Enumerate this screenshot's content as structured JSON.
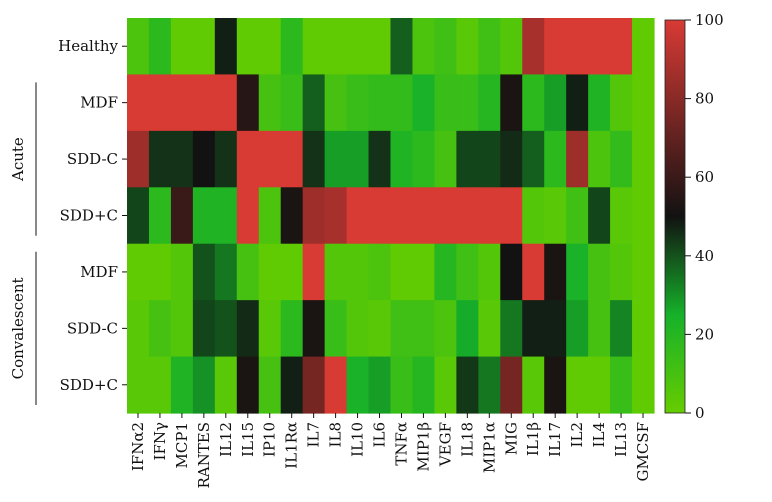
{
  "chart_data": {
    "type": "heatmap",
    "row_groups": [
      {
        "label": "",
        "rows": [
          "Healthy"
        ]
      },
      {
        "label": "Acute",
        "rows": [
          "MDF",
          "SDD-C",
          "SDD+C"
        ]
      },
      {
        "label": "Convalescent",
        "rows": [
          "MDF",
          "SDD-C",
          "SDD+C"
        ]
      }
    ],
    "rows": [
      "Healthy",
      "MDF",
      "SDD-C",
      "SDD+C",
      "MDF",
      "SDD-C",
      "SDD+C"
    ],
    "columns": [
      "IFNα2",
      "IFNγ",
      "MCP1",
      "RANTES",
      "IL12",
      "IL15",
      "IP10",
      "IL1Rα",
      "IL7",
      "IL8",
      "IL10",
      "IL6",
      "TNFα",
      "MIP1β",
      "VEGF",
      "IL18",
      "MIP1α",
      "MIG",
      "IL1β",
      "IL17",
      "IL2",
      "IL4",
      "IL13",
      "GMCSF"
    ],
    "values": [
      [
        8,
        18,
        2,
        2,
        48,
        2,
        2,
        18,
        2,
        2,
        2,
        2,
        38,
        8,
        12,
        4,
        12,
        6,
        88,
        100,
        100,
        100,
        100,
        2
      ],
      [
        100,
        100,
        100,
        100,
        100,
        55,
        10,
        14,
        38,
        10,
        14,
        16,
        16,
        24,
        14,
        14,
        20,
        52,
        18,
        28,
        48,
        22,
        6,
        2
      ],
      [
        85,
        45,
        45,
        50,
        45,
        100,
        100,
        100,
        45,
        28,
        28,
        45,
        22,
        18,
        10,
        42,
        42,
        46,
        38,
        18,
        85,
        8,
        16,
        2
      ],
      [
        42,
        18,
        60,
        22,
        22,
        100,
        8,
        52,
        85,
        88,
        100,
        100,
        100,
        100,
        100,
        100,
        100,
        100,
        6,
        4,
        12,
        42,
        4,
        2
      ],
      [
        2,
        2,
        6,
        40,
        34,
        10,
        2,
        2,
        100,
        6,
        6,
        8,
        2,
        2,
        20,
        12,
        6,
        50,
        100,
        52,
        24,
        10,
        6,
        2
      ],
      [
        4,
        10,
        6,
        42,
        40,
        46,
        4,
        18,
        52,
        14,
        6,
        4,
        12,
        12,
        8,
        26,
        4,
        34,
        48,
        48,
        28,
        10,
        32,
        2
      ],
      [
        4,
        4,
        22,
        30,
        4,
        52,
        10,
        48,
        75,
        100,
        24,
        28,
        14,
        20,
        4,
        44,
        34,
        75,
        4,
        52,
        2,
        2,
        14,
        2
      ]
    ],
    "colorbar": {
      "min": 0,
      "max": 100,
      "ticks": [
        0,
        20,
        40,
        60,
        80,
        100
      ]
    },
    "colors": {
      "low": "#66cc00",
      "mid_low": "#16b12a",
      "mid": "#121212",
      "high": "#d83a34"
    }
  }
}
